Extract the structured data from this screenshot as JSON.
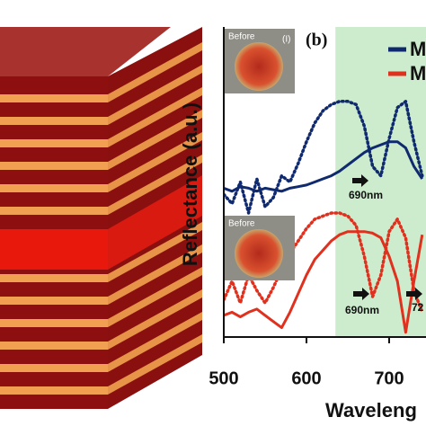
{
  "chart_data": {
    "type": "line",
    "panel_label": "(b)",
    "xlabel": "Waveleng",
    "ylabel": "Reflectance (a.u.)",
    "xlim": [
      500,
      750
    ],
    "ylim": [
      0,
      10
    ],
    "xticks": [
      500,
      600,
      700
    ],
    "highlight_band": [
      635,
      750
    ],
    "highlight_color": "#cdeccd",
    "x": [
      500,
      510,
      520,
      530,
      540,
      550,
      560,
      570,
      580,
      590,
      600,
      610,
      620,
      630,
      640,
      650,
      660,
      670,
      680,
      690,
      700,
      710,
      720,
      730,
      740
    ],
    "series": [
      {
        "name": "M",
        "color": "#0f2a6e",
        "dash": false,
        "values": [
          4.8,
          4.7,
          4.85,
          4.8,
          4.7,
          4.8,
          4.75,
          4.7,
          4.8,
          4.85,
          4.9,
          5.0,
          5.1,
          5.2,
          5.35,
          5.55,
          5.75,
          5.95,
          6.1,
          6.2,
          6.3,
          6.3,
          6.1,
          5.5,
          5.1
        ]
      },
      {
        "color": "#0f2a6e",
        "dash": true,
        "values": [
          4.6,
          4.3,
          5.0,
          4.0,
          5.1,
          4.2,
          4.5,
          5.2,
          5.0,
          5.6,
          6.3,
          6.9,
          7.3,
          7.5,
          7.6,
          7.6,
          7.5,
          6.8,
          5.5,
          5.2,
          6.4,
          7.4,
          7.6,
          6.3,
          5.2
        ]
      },
      {
        "name": "M",
        "color": "#e0301e",
        "dash": false,
        "values": [
          0.7,
          0.8,
          0.65,
          0.8,
          0.9,
          0.7,
          0.5,
          0.3,
          0.8,
          1.4,
          2.0,
          2.5,
          2.8,
          3.1,
          3.3,
          3.4,
          3.4,
          3.4,
          3.35,
          3.2,
          2.6,
          1.8,
          0.15,
          1.8,
          3.3
        ]
      },
      {
        "color": "#e0301e",
        "dash": true,
        "values": [
          1.2,
          1.8,
          1.1,
          2.0,
          1.5,
          1.1,
          1.6,
          2.2,
          2.7,
          3.1,
          3.5,
          3.8,
          3.9,
          4.0,
          4.0,
          3.9,
          3.6,
          2.6,
          1.3,
          2.0,
          3.4,
          3.8,
          3.2,
          1.5,
          0.8
        ]
      }
    ],
    "annotations": [
      "Before",
      "(I)",
      "Before",
      "690nm",
      "690nm",
      "72"
    ]
  }
}
